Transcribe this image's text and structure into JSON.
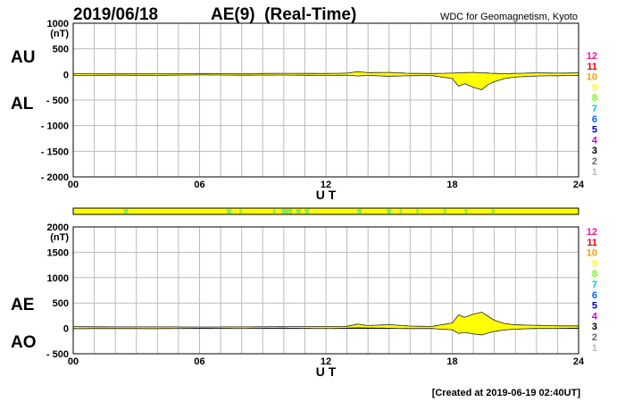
{
  "header": {
    "date": "2019/06/18",
    "title": "AE(9)  (Real-Time)",
    "source": "WDC for Geomagnetism, Kyoto"
  },
  "footer": {
    "created": "[Created at 2019-06-19 02:40UT]"
  },
  "station_count_legend": {
    "labels": [
      "12",
      "11",
      "10",
      "9",
      "8",
      "7",
      "6",
      "5",
      "4",
      "3",
      "2",
      "1"
    ],
    "colors": [
      "#ff1493",
      "#dd0000",
      "#ff9900",
      "#ffff00",
      "#66ff00",
      "#00cccc",
      "#0066ff",
      "#0000cc",
      "#cc00cc",
      "#000000",
      "#666666",
      "#bbbbbb"
    ]
  },
  "chart_data": [
    {
      "type": "area",
      "name": "au-al-panel",
      "unit": "(nT)",
      "side_labels": [
        "AU",
        "AL"
      ],
      "series": [
        {
          "name": "AU",
          "x": [
            0,
            2,
            4,
            6,
            8,
            10,
            12,
            13,
            13.5,
            14,
            15,
            16,
            17,
            18,
            18.5,
            19,
            19.5,
            20,
            20.5,
            21,
            22,
            23,
            24
          ],
          "values": [
            15,
            12,
            12,
            18,
            15,
            22,
            18,
            25,
            55,
            35,
            40,
            20,
            18,
            25,
            35,
            40,
            30,
            20,
            15,
            20,
            30,
            25,
            30
          ]
        },
        {
          "name": "AL",
          "x": [
            0,
            2,
            4,
            6,
            8,
            10,
            12,
            13,
            13.5,
            14,
            15,
            16,
            17,
            18,
            18.3,
            18.6,
            19,
            19.4,
            19.7,
            20,
            20.5,
            21,
            22,
            23,
            24
          ],
          "values": [
            -20,
            -15,
            -18,
            -10,
            -15,
            -12,
            -20,
            -15,
            -30,
            -20,
            -35,
            -25,
            -20,
            -80,
            -230,
            -180,
            -250,
            -300,
            -200,
            -140,
            -80,
            -50,
            -30,
            -25,
            -20
          ]
        }
      ],
      "x_ticks": [
        "00",
        "06",
        "12",
        "18",
        "24"
      ],
      "xlabel": "U T",
      "xlim": [
        0,
        24
      ],
      "y_ticks": [
        "1000",
        "500",
        "0",
        "- 500",
        "- 1000",
        "- 1500",
        "- 2000"
      ],
      "ylim": [
        -2000,
        1000
      ],
      "grid": true
    },
    {
      "type": "area",
      "name": "ae-ao-panel",
      "unit": "(nT)",
      "side_labels": [
        "AE",
        "AO"
      ],
      "series": [
        {
          "name": "AE",
          "x": [
            0,
            2,
            4,
            6,
            8,
            10,
            12,
            13,
            13.5,
            14,
            15,
            16,
            17,
            18,
            18.3,
            18.6,
            19,
            19.4,
            19.7,
            20,
            20.5,
            21,
            22,
            23,
            24
          ],
          "values": [
            35,
            30,
            30,
            28,
            30,
            34,
            38,
            40,
            85,
            55,
            75,
            45,
            38,
            105,
            265,
            220,
            280,
            320,
            240,
            160,
            95,
            70,
            60,
            50,
            50
          ]
        },
        {
          "name": "AO",
          "x": [
            0,
            2,
            4,
            6,
            8,
            10,
            12,
            13,
            13.5,
            14,
            15,
            16,
            17,
            18,
            18.3,
            18.6,
            19,
            19.4,
            19.7,
            20,
            20.5,
            21,
            22,
            23,
            24
          ],
          "values": [
            -3,
            -2,
            -3,
            4,
            0,
            5,
            -1,
            5,
            13,
            8,
            3,
            -3,
            -1,
            -28,
            -100,
            -80,
            -110,
            -130,
            -90,
            -60,
            -30,
            -15,
            0,
            0,
            5
          ]
        }
      ],
      "x_ticks": [
        "00",
        "06",
        "12",
        "18",
        "24"
      ],
      "xlabel": "U T",
      "xlim": [
        0,
        24
      ],
      "y_ticks": [
        "2000",
        "1500",
        "1000",
        "500",
        "0",
        "- 500"
      ],
      "ylim": [
        -500,
        2000
      ],
      "grid": true
    }
  ]
}
